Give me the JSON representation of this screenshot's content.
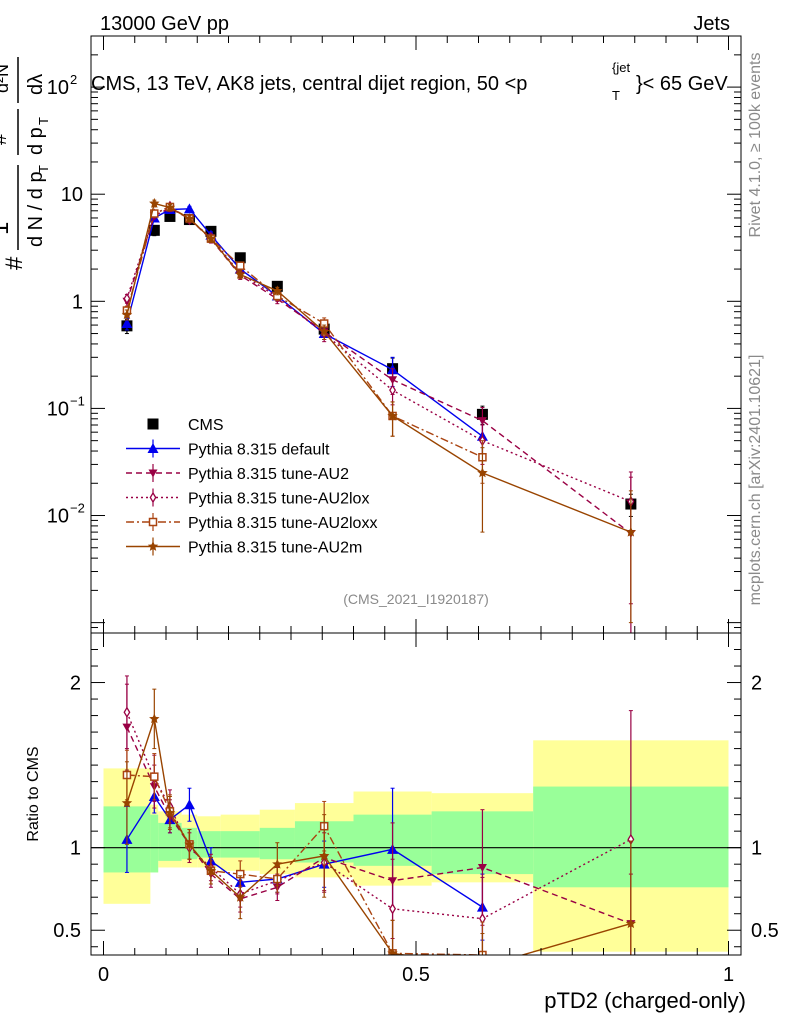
{
  "header": {
    "left": "13000 GeV pp",
    "right": "Jets"
  },
  "side_labels": {
    "rivet": "Rivet 4.1.0, ≥ 100k events",
    "mcplots": "mcplots.cern.ch [arXiv:2401.10621]"
  },
  "analysis_tag": "(CMS_2021_I1920187)",
  "y_label": {
    "top": "d²N",
    "num_left": "#",
    "num_mid": "1",
    "den_dn": "d N / d p",
    "den_T": "T",
    "frac_hash": "#",
    "dpt": "d p",
    "dpt_T": "T",
    "dlambda": "dλ"
  },
  "colors": {
    "cms": "#000000",
    "default": "#0000ee",
    "au2": "#990044",
    "au2lox": "#990044",
    "au2loxx": "#aa4411",
    "au2m": "#994400",
    "band_stat": "#99ff99",
    "band_syst": "#ffff99"
  },
  "chart_data": [
    {
      "type": "line",
      "title": "CMS, 13 TeV, AK8 jets, central dijet region, 50 <p",
      "title_sub": "T",
      "title_sup": "{jet",
      "title_end": "}< 65 GeV",
      "xlabel": "pTD2 (charged-only)",
      "ylog": true,
      "xlim": [
        -0.02,
        1.02
      ],
      "ylim": [
        0.0008,
        300
      ],
      "y_ticks": [
        {
          "v": 0.01,
          "label": "10",
          "exp": "−2"
        },
        {
          "v": 0.1,
          "label": "10",
          "exp": "−1"
        },
        {
          "v": 1,
          "label": "1",
          "exp": ""
        },
        {
          "v": 10,
          "label": "10",
          "exp": ""
        },
        {
          "v": 100,
          "label": "10",
          "exp": "2"
        }
      ],
      "x": [
        0.0375,
        0.0813,
        0.1063,
        0.1375,
        0.1719,
        0.2188,
        0.2781,
        0.3531,
        0.4625,
        0.6063,
        0.8438
      ],
      "series": [
        {
          "name": "CMS",
          "key": "cms",
          "marker": "square-filled",
          "line": "none",
          "values": [
            0.59,
            4.6,
            6.2,
            5.8,
            4.5,
            2.55,
            1.38,
            0.55,
            0.235,
            0.088,
            0.0128
          ],
          "err_lo": [
            0.09,
            0.5,
            0.5,
            0.4,
            0.3,
            0.15,
            0.09,
            0.05,
            0.05,
            0.017,
            0.003
          ],
          "err_hi": [
            0.09,
            0.5,
            0.5,
            0.4,
            0.3,
            0.15,
            0.09,
            0.05,
            0.06,
            0.017,
            0.003
          ]
        },
        {
          "name": "Pythia 8.315 default",
          "key": "default",
          "marker": "triangle-up-filled",
          "line": "solid",
          "values": [
            0.62,
            6.0,
            7.2,
            7.3,
            4.15,
            2.0,
            1.12,
            0.5,
            0.23,
            0.055,
            0.0
          ],
          "err_lo": [
            0.08,
            0.3,
            0.4,
            0.4,
            0.3,
            0.12,
            0.1,
            0.06,
            0.07,
            0.02,
            0.0
          ],
          "err_hi": [
            0.08,
            0.3,
            0.4,
            0.4,
            0.3,
            0.12,
            0.1,
            0.06,
            0.07,
            0.02,
            0.0
          ]
        },
        {
          "name": "Pythia 8.315 tune-AU2",
          "key": "au2",
          "marker": "triangle-down-filled",
          "line": "dashed",
          "values": [
            1.0,
            6.3,
            7.4,
            5.9,
            3.8,
            1.75,
            1.05,
            0.52,
            0.185,
            0.077,
            0.0068
          ],
          "err_lo": [
            0.1,
            0.4,
            0.5,
            0.4,
            0.3,
            0.15,
            0.1,
            0.08,
            0.05,
            0.025,
            0.006
          ],
          "err_hi": [
            0.1,
            0.4,
            0.5,
            0.4,
            0.3,
            0.15,
            0.1,
            0.08,
            0.05,
            0.025,
            0.016
          ]
        },
        {
          "name": "Pythia 8.315 tune-AU2lox",
          "key": "au2lox",
          "marker": "diamond-open",
          "line": "dotted",
          "values": [
            1.06,
            6.5,
            7.7,
            5.8,
            3.95,
            1.82,
            1.1,
            0.5,
            0.148,
            0.05,
            0.0135
          ],
          "err_lo": [
            0.1,
            0.4,
            0.5,
            0.4,
            0.3,
            0.15,
            0.1,
            0.08,
            0.04,
            0.02,
            0.012
          ],
          "err_hi": [
            0.1,
            0.4,
            0.5,
            0.4,
            0.3,
            0.15,
            0.1,
            0.08,
            0.04,
            0.02,
            0.012
          ]
        },
        {
          "name": "Pythia 8.315 tune-AU2loxx",
          "key": "au2loxx",
          "marker": "square-open",
          "line": "dashdot",
          "values": [
            0.82,
            6.6,
            7.6,
            5.95,
            3.85,
            2.15,
            1.12,
            0.62,
            0.085,
            0.035,
            0.0
          ],
          "err_lo": [
            0.08,
            0.4,
            0.5,
            0.4,
            0.3,
            0.15,
            0.1,
            0.08,
            0.03,
            0.015,
            0.0
          ],
          "err_hi": [
            0.08,
            0.4,
            0.5,
            0.4,
            0.3,
            0.15,
            0.1,
            0.08,
            0.03,
            0.015,
            0.0
          ]
        },
        {
          "name": "Pythia 8.315 tune-AU2m",
          "key": "au2m",
          "marker": "star-filled",
          "line": "solid",
          "values": [
            0.75,
            8.2,
            7.5,
            5.9,
            3.85,
            1.78,
            1.25,
            0.52,
            0.085,
            0.025,
            0.007
          ],
          "err_lo": [
            0.08,
            0.6,
            0.5,
            0.4,
            0.3,
            0.15,
            0.1,
            0.08,
            0.03,
            0.018,
            0.006
          ],
          "err_hi": [
            0.08,
            0.6,
            0.5,
            0.4,
            0.3,
            0.15,
            0.1,
            0.08,
            0.03,
            0.018,
            0.01
          ]
        }
      ]
    },
    {
      "type": "line",
      "title": "",
      "ylabel": "Ratio to CMS",
      "xlabel": "pTD2 (charged-only)",
      "xlim": [
        -0.02,
        1.02
      ],
      "ylim": [
        0.35,
        2.3
      ],
      "y_ticks": [
        {
          "v": 0.5,
          "label": "0.5"
        },
        {
          "v": 1,
          "label": "1"
        },
        {
          "v": 2,
          "label": "2"
        }
      ],
      "x_ticks": [
        {
          "v": 0,
          "label": "0"
        },
        {
          "v": 0.5,
          "label": "0.5"
        },
        {
          "v": 1,
          "label": "1"
        }
      ],
      "reference": 1,
      "bands": {
        "edges": [
          0.0,
          0.075,
          0.0875,
          0.125,
          0.15,
          0.1875,
          0.25,
          0.3063,
          0.4,
          0.525,
          0.6875,
          1.0
        ],
        "stat_lo": [
          0.85,
          0.85,
          0.92,
          0.93,
          0.94,
          0.94,
          0.93,
          0.91,
          0.89,
          0.84,
          0.76
        ],
        "stat_hi": [
          1.25,
          1.2,
          1.15,
          1.12,
          1.1,
          1.1,
          1.12,
          1.16,
          1.2,
          1.22,
          1.37
        ],
        "syst_lo": [
          0.66,
          0.85,
          0.88,
          0.88,
          0.88,
          0.86,
          0.84,
          0.82,
          0.77,
          0.79,
          0.37
        ],
        "syst_hi": [
          1.48,
          1.26,
          1.22,
          1.2,
          1.19,
          1.2,
          1.23,
          1.27,
          1.34,
          1.33,
          1.65
        ]
      },
      "x": [
        0.0375,
        0.0813,
        0.1063,
        0.1375,
        0.1719,
        0.2188,
        0.2781,
        0.3531,
        0.4625,
        0.6063,
        0.8438
      ],
      "series": [
        {
          "name": "Pythia 8.315 default",
          "key": "default",
          "values": [
            1.05,
            1.31,
            1.17,
            1.26,
            0.92,
            0.79,
            0.81,
            0.9,
            0.99,
            0.64,
            null
          ],
          "err": [
            0.2,
            0.1,
            0.08,
            0.1,
            0.08,
            0.07,
            0.08,
            0.14,
            0.37,
            0.2,
            0
          ]
        },
        {
          "name": "Pythia 8.315 tune-AU2",
          "key": "au2",
          "values": [
            1.73,
            1.37,
            1.19,
            1.02,
            0.84,
            0.69,
            0.76,
            0.94,
            0.8,
            0.88,
            0.54
          ],
          "err": [
            0.26,
            0.13,
            0.1,
            0.09,
            0.08,
            0.08,
            0.08,
            0.2,
            0.35,
            0.35,
            0.3
          ]
        },
        {
          "name": "Pythia 8.315 tune-AU2lox",
          "key": "au2lox",
          "values": [
            1.82,
            1.42,
            1.25,
            1.0,
            0.88,
            0.72,
            0.8,
            0.91,
            0.63,
            0.57,
            1.05
          ],
          "err": [
            0.22,
            0.14,
            0.1,
            0.09,
            0.08,
            0.08,
            0.08,
            0.18,
            0.3,
            0.25,
            0.78
          ]
        },
        {
          "name": "Pythia 8.315 tune-AU2loxx",
          "key": "au2loxx",
          "values": [
            1.44,
            1.43,
            1.22,
            1.02,
            0.86,
            0.84,
            0.81,
            1.13,
            0.36,
            0.35,
            null
          ],
          "err": [
            0.15,
            0.14,
            0.1,
            0.09,
            0.08,
            0.08,
            0.08,
            0.15,
            0.2,
            0.2,
            0
          ]
        },
        {
          "name": "Pythia 8.315 tune-AU2m",
          "key": "au2m",
          "values": [
            1.27,
            1.78,
            1.21,
            1.02,
            0.86,
            0.7,
            0.9,
            0.95,
            0.36,
            0.28,
            0.54
          ],
          "err": [
            0.25,
            0.18,
            0.1,
            0.09,
            0.08,
            0.13,
            0.13,
            0.25,
            0.2,
            0.2,
            0.5
          ]
        }
      ]
    }
  ]
}
